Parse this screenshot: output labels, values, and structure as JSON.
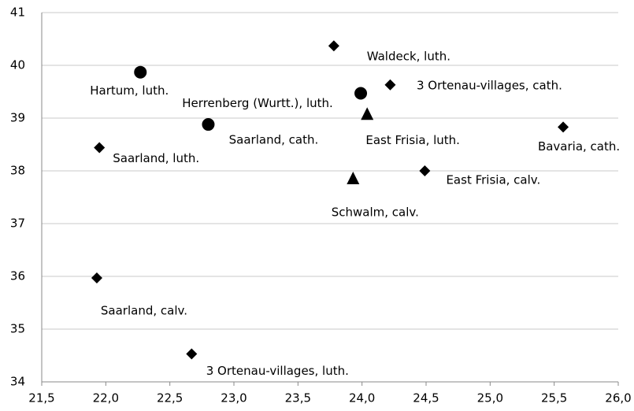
{
  "chart_data": {
    "type": "scatter",
    "xlim": [
      21.5,
      26.0
    ],
    "xticks": [
      {
        "value": 21.5,
        "label": "21,5"
      },
      {
        "value": 22.0,
        "label": "22,0"
      },
      {
        "value": 22.5,
        "label": "22,5"
      },
      {
        "value": 23.0,
        "label": "23,0"
      },
      {
        "value": 23.5,
        "label": "23,5"
      },
      {
        "value": 24.0,
        "label": "24,0"
      },
      {
        "value": 24.5,
        "label": "24,5"
      },
      {
        "value": 25.0,
        "label": "25,0"
      },
      {
        "value": 25.5,
        "label": "25,5"
      },
      {
        "value": 26.0,
        "label": "26,0"
      }
    ],
    "ylim": [
      34,
      41
    ],
    "yticks": [
      34,
      35,
      36,
      37,
      38,
      39,
      40,
      41
    ],
    "grid": true,
    "series": [
      {
        "marker": "circle",
        "color": "#000000",
        "x": [
          22.27,
          23.99,
          22.8
        ],
        "values": [
          39.87,
          39.47,
          38.88
        ],
        "labels": [
          "Hartum, luth.",
          "Herrenberg (Wurtt.), luth.",
          "Saarland, cath."
        ]
      },
      {
        "marker": "diamond",
        "color": "#000000",
        "x": [
          23.78,
          24.22,
          25.57,
          21.95,
          24.49,
          21.93,
          22.67
        ],
        "values": [
          40.37,
          39.63,
          38.83,
          38.44,
          38.0,
          35.97,
          34.53
        ],
        "labels": [
          "Waldeck, luth.",
          "3 Ortenau-villages, cath.",
          "Bavaria, cath.",
          "Saarland, luth.",
          "East Frisia, calv.",
          "Saarland, calv.",
          "3 Ortenau-villages, luth."
        ]
      },
      {
        "marker": "triangle",
        "color": "#000000",
        "x": [
          24.04,
          23.93
        ],
        "values": [
          39.07,
          37.85
        ],
        "labels": [
          "East Frisia, luth.",
          "Schwalm, calv."
        ]
      }
    ]
  }
}
